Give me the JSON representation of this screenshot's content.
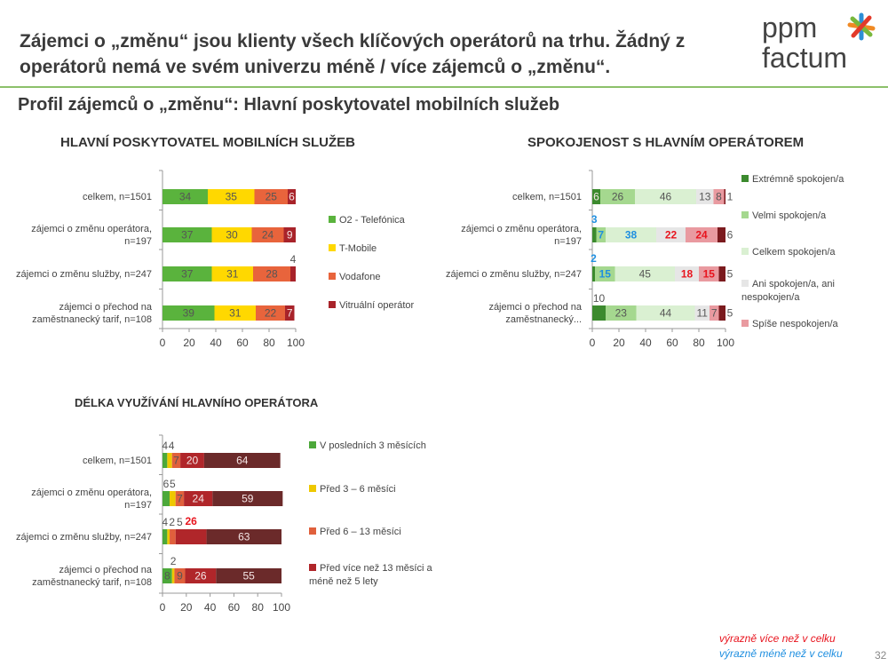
{
  "header": {
    "title": "Zájemci o „změnu“ jsou klienty všech klíčových operátorů na trhu. Žádný z operátorů nemá ve svém univerzu  méně / více zájemců o „změnu“.",
    "subtitle": "Profil zájemců o „změnu“: Hlavní poskytovatel mobilních služeb",
    "logo_text": [
      "ppm",
      "factum"
    ]
  },
  "footer": {
    "more": "výrazně více než v celku",
    "less": "výrazně méně než v celku",
    "page": "32",
    "more_color": "#e8141e",
    "less_color": "#1f8fe0"
  },
  "chart_data": [
    {
      "type": "bar",
      "orientation": "horizontal",
      "stacked": true,
      "title": "HLAVNÍ POSKYTOVATEL MOBILNÍCH SLUŽEB",
      "xlim": [
        0,
        100
      ],
      "xticks": [
        "0",
        "20",
        "40",
        "60",
        "80",
        "100"
      ],
      "categories": [
        "celkem, n=1501",
        "zájemci o změnu operátora, n=197",
        "zájemci o změnu služby, n=247",
        "zájemci o přechod na zaměstnanecký tarif, n=108"
      ],
      "series": [
        {
          "name": "O2 - Telefónica",
          "color": "#5ab33d",
          "values": [
            34,
            37,
            37,
            39
          ]
        },
        {
          "name": "T-Mobile",
          "color": "#ffd800",
          "values": [
            35,
            30,
            31,
            31
          ]
        },
        {
          "name": "Vodafone",
          "color": "#e8643c",
          "values": [
            25,
            24,
            28,
            22
          ]
        },
        {
          "name": "Vitruální operátor",
          "color": "#a8232a",
          "values": [
            6,
            9,
            4,
            7
          ]
        }
      ],
      "highlights": []
    },
    {
      "type": "bar",
      "orientation": "horizontal",
      "stacked": true,
      "title": "SPOKOJENOST S HLAVNÍM OPERÁTOREM",
      "xlim": [
        0,
        100
      ],
      "xticks": [
        "0",
        "20",
        "40",
        "60",
        "80",
        "100"
      ],
      "categories": [
        "celkem, n=1501",
        "zájemci o změnu operátora, n=197",
        "zájemci o změnu služby, n=247",
        "zájemci o přechod na zaměstnanecký..."
      ],
      "series": [
        {
          "name": "Extrémně spokojen/a",
          "color": "#3c8a2e",
          "values": [
            6,
            3,
            2,
            10
          ]
        },
        {
          "name": "Velmi spokojen/a",
          "color": "#a5d88f",
          "values": [
            26,
            7,
            15,
            23
          ]
        },
        {
          "name": "Celkem spokojen/a",
          "color": "#daf0d2",
          "values": [
            46,
            38,
            45,
            44
          ]
        },
        {
          "name": "Ani spokojen/a, ani nespokojen/a",
          "color": "#e6e6e6",
          "values": [
            13,
            22,
            18,
            11
          ]
        },
        {
          "name": "Spíše nespokojen/a",
          "color": "#e99aa0",
          "values": [
            8,
            24,
            15,
            7
          ]
        },
        {
          "color": "#7b1a1e",
          "values": [
            1,
            6,
            5,
            5
          ]
        }
      ],
      "highlights": [
        {
          "row": 1,
          "series": 0,
          "type": "less"
        },
        {
          "row": 1,
          "series": 1,
          "type": "less"
        },
        {
          "row": 1,
          "series": 2,
          "type": "less"
        },
        {
          "row": 1,
          "series": 3,
          "type": "more"
        },
        {
          "row": 1,
          "series": 4,
          "type": "more"
        },
        {
          "row": 2,
          "series": 0,
          "type": "less"
        },
        {
          "row": 2,
          "series": 1,
          "type": "less"
        },
        {
          "row": 2,
          "series": 3,
          "type": "more"
        },
        {
          "row": 2,
          "series": 4,
          "type": "more"
        }
      ]
    },
    {
      "type": "bar",
      "orientation": "horizontal",
      "stacked": true,
      "title": "DÉLKA VYUŽÍVÁNÍ HLAVNÍHO OPERÁTORA",
      "xlim": [
        0,
        100
      ],
      "xticks": [
        "0",
        "20",
        "40",
        "60",
        "80",
        "100"
      ],
      "categories": [
        "celkem, n=1501",
        "zájemci o změnu operátora, n=197",
        "zájemci o změnu služby, n=247",
        "zájemci o přechod na zaměstnanecký tarif, n=108"
      ],
      "series": [
        {
          "name": "V posledních  3 měsících",
          "color": "#4ca83a",
          "values": [
            4,
            6,
            4,
            8
          ]
        },
        {
          "name": "Před 3 – 6 měsíci",
          "color": "#eec800",
          "values": [
            4,
            5,
            2,
            2
          ]
        },
        {
          "name": "Před 6 – 13 měsíci",
          "color": "#e0603c",
          "values": [
            7,
            7,
            5,
            9
          ]
        },
        {
          "name": "Před více než 13 měsíci a méně než 5 lety",
          "color": "#b0262a",
          "values": [
            20,
            24,
            26,
            26
          ]
        },
        {
          "color": "#6b2a2a",
          "values": [
            64,
            59,
            63,
            55
          ]
        }
      ],
      "highlights": [
        {
          "row": 2,
          "series": 3,
          "type": "more"
        }
      ]
    }
  ]
}
